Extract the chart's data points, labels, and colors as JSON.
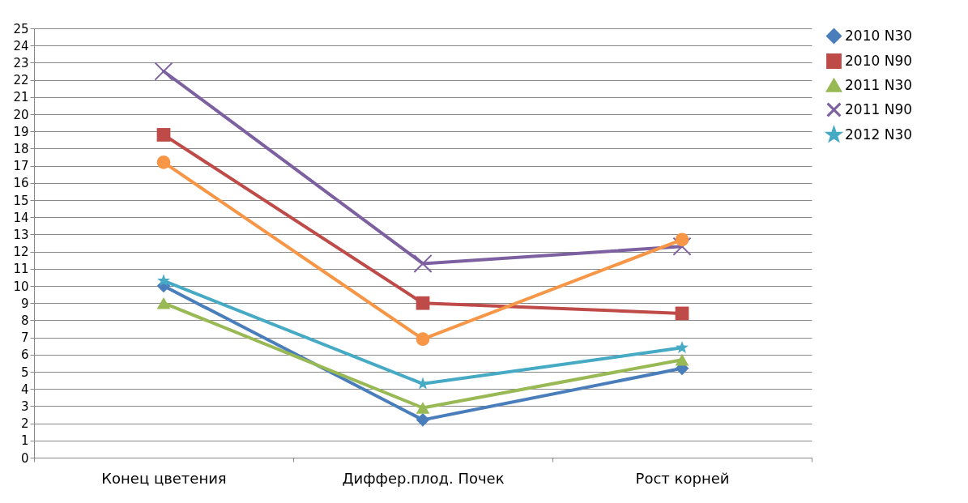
{
  "chart_data": {
    "type": "line",
    "categories": [
      "Конец цветения",
      "Диффер.плод. Почек",
      "Рост корней"
    ],
    "series": [
      {
        "name": "2010 N30",
        "color": "#4a7ebb",
        "marker": "diamond",
        "values": [
          10,
          2.2,
          5.2
        ]
      },
      {
        "name": "2010 N90",
        "color": "#be4b48",
        "marker": "square",
        "values": [
          18.8,
          9.0,
          8.4
        ]
      },
      {
        "name": "2011 N30",
        "color": "#98b954",
        "marker": "triangle",
        "values": [
          9.0,
          2.9,
          5.7
        ]
      },
      {
        "name": "2011 N90",
        "color": "#7d60a0",
        "marker": "cross",
        "values": [
          22.5,
          11.3,
          12.3
        ]
      },
      {
        "name": "2012 N30",
        "color": "#46aac5",
        "marker": "star",
        "values": [
          10.3,
          4.3,
          6.4
        ]
      },
      {
        "color": "#f79646",
        "marker": "circle",
        "values": [
          17.2,
          6.9,
          12.7
        ]
      }
    ],
    "ylim": [
      0,
      25
    ],
    "yticks": [
      0,
      1,
      2,
      3,
      4,
      5,
      6,
      7,
      8,
      9,
      10,
      11,
      12,
      13,
      14,
      15,
      16,
      17,
      18,
      19,
      20,
      21,
      22,
      23,
      24,
      25
    ],
    "grid": "y",
    "legend": "right"
  }
}
